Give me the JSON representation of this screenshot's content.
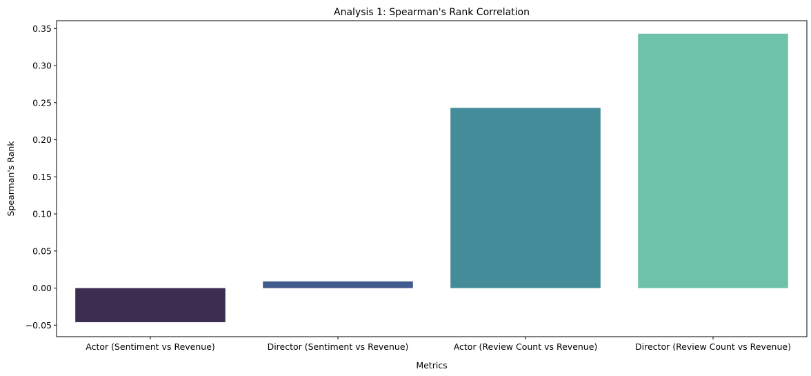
{
  "chart_data": {
    "type": "bar",
    "title": "Analysis 1: Spearman's Rank Correlation",
    "xlabel": "Metrics",
    "ylabel": "Spearman's Rank",
    "categories": [
      "Actor (Sentiment vs Revenue)",
      "Director (Sentiment vs Revenue)",
      "Actor (Review Count vs Revenue)",
      "Director (Review Count vs Revenue)"
    ],
    "values": [
      -0.046,
      0.009,
      0.243,
      0.343
    ],
    "colors": [
      "#3b2e51",
      "#415b8e",
      "#448c99",
      "#6ec2a7"
    ],
    "ylim": [
      -0.0655,
      0.3605
    ],
    "yticks": [
      -0.05,
      0.0,
      0.05,
      0.1,
      0.15,
      0.2,
      0.25,
      0.3,
      0.35
    ],
    "ytick_labels": [
      "−0.05",
      "0.00",
      "0.05",
      "0.10",
      "0.15",
      "0.20",
      "0.25",
      "0.30",
      "0.35"
    ],
    "grid": false,
    "legend": "none"
  }
}
